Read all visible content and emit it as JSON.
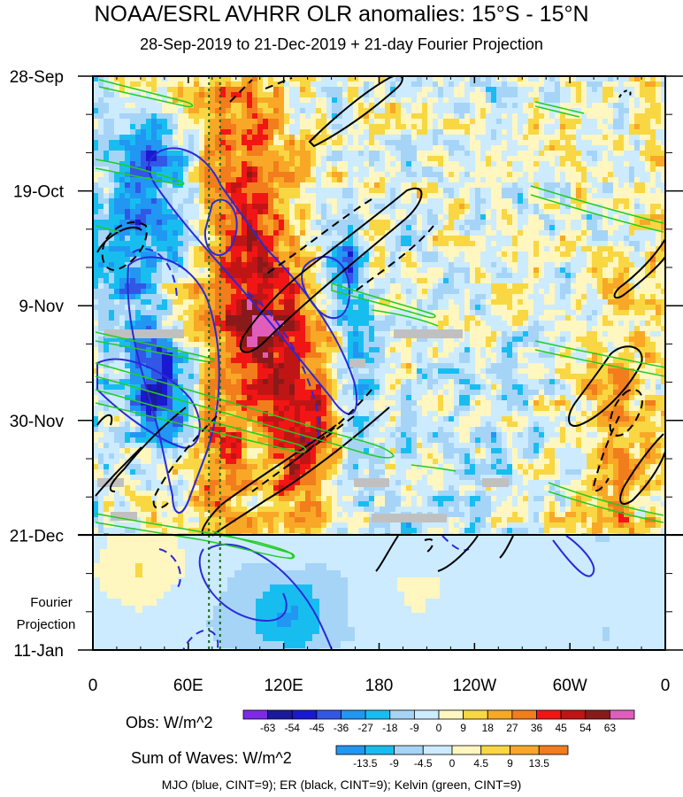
{
  "title": "NOAA/ESRL AVHRR OLR anomalies: 15°S - 15°N",
  "subtitle": "28-Sep-2019 to 21-Dec-2019 + 21-day Fourier Projection",
  "chart_data": {
    "type": "heatmap",
    "x_ticks": [
      "0",
      "60E",
      "120E",
      "180",
      "120W",
      "60W",
      "0"
    ],
    "x_lons": [
      0,
      60,
      120,
      180,
      240,
      300,
      360
    ],
    "y_ticks": [
      "28-Sep",
      "19-Oct",
      "9-Nov",
      "30-Nov",
      "21-Dec",
      "11-Jan"
    ],
    "y_days": [
      0,
      21,
      42,
      63,
      84,
      105
    ],
    "projection_label_line1": "Fourier",
    "projection_label_line2": "Projection",
    "observed_end_day": 84,
    "obs_colorbar": {
      "label": "Obs: W/m^2",
      "levels": [
        "-63",
        "-54",
        "-45",
        "-36",
        "-27",
        "-18",
        "-9",
        "0",
        "9",
        "18",
        "27",
        "36",
        "45",
        "54",
        "63"
      ],
      "colors": [
        "#7d2ae8",
        "#1a1a9c",
        "#1919d2",
        "#3257e6",
        "#2196f3",
        "#18bdf0",
        "#a6d4f7",
        "#ccebff",
        "#fff6c0",
        "#f8d742",
        "#f8a826",
        "#f27d1c",
        "#f21515",
        "#c01515",
        "#8a1a1a",
        "#e05dbb"
      ]
    },
    "waves_colorbar": {
      "label": "Sum of Waves: W/m^2",
      "levels": [
        "-13.5",
        "-9",
        "-4.5",
        "0",
        "4.5",
        "9",
        "13.5"
      ],
      "colors": [
        "#2196f3",
        "#18bdf0",
        "#a6d4f7",
        "#ccebff",
        "#fff6c0",
        "#f8d742",
        "#f8a826",
        "#f27d1c"
      ]
    },
    "contours": [
      {
        "name": "MJO",
        "color": "#2a2ad8"
      },
      {
        "name": "ER",
        "color": "#000000"
      },
      {
        "name": "Kelvin",
        "color": "#22cc22"
      }
    ],
    "dotted_lines_lon": [
      73,
      80
    ],
    "footer": "MJO (blue, CINT=9); ER (black, CINT=9); Kelvin (green, CINT=9)"
  }
}
